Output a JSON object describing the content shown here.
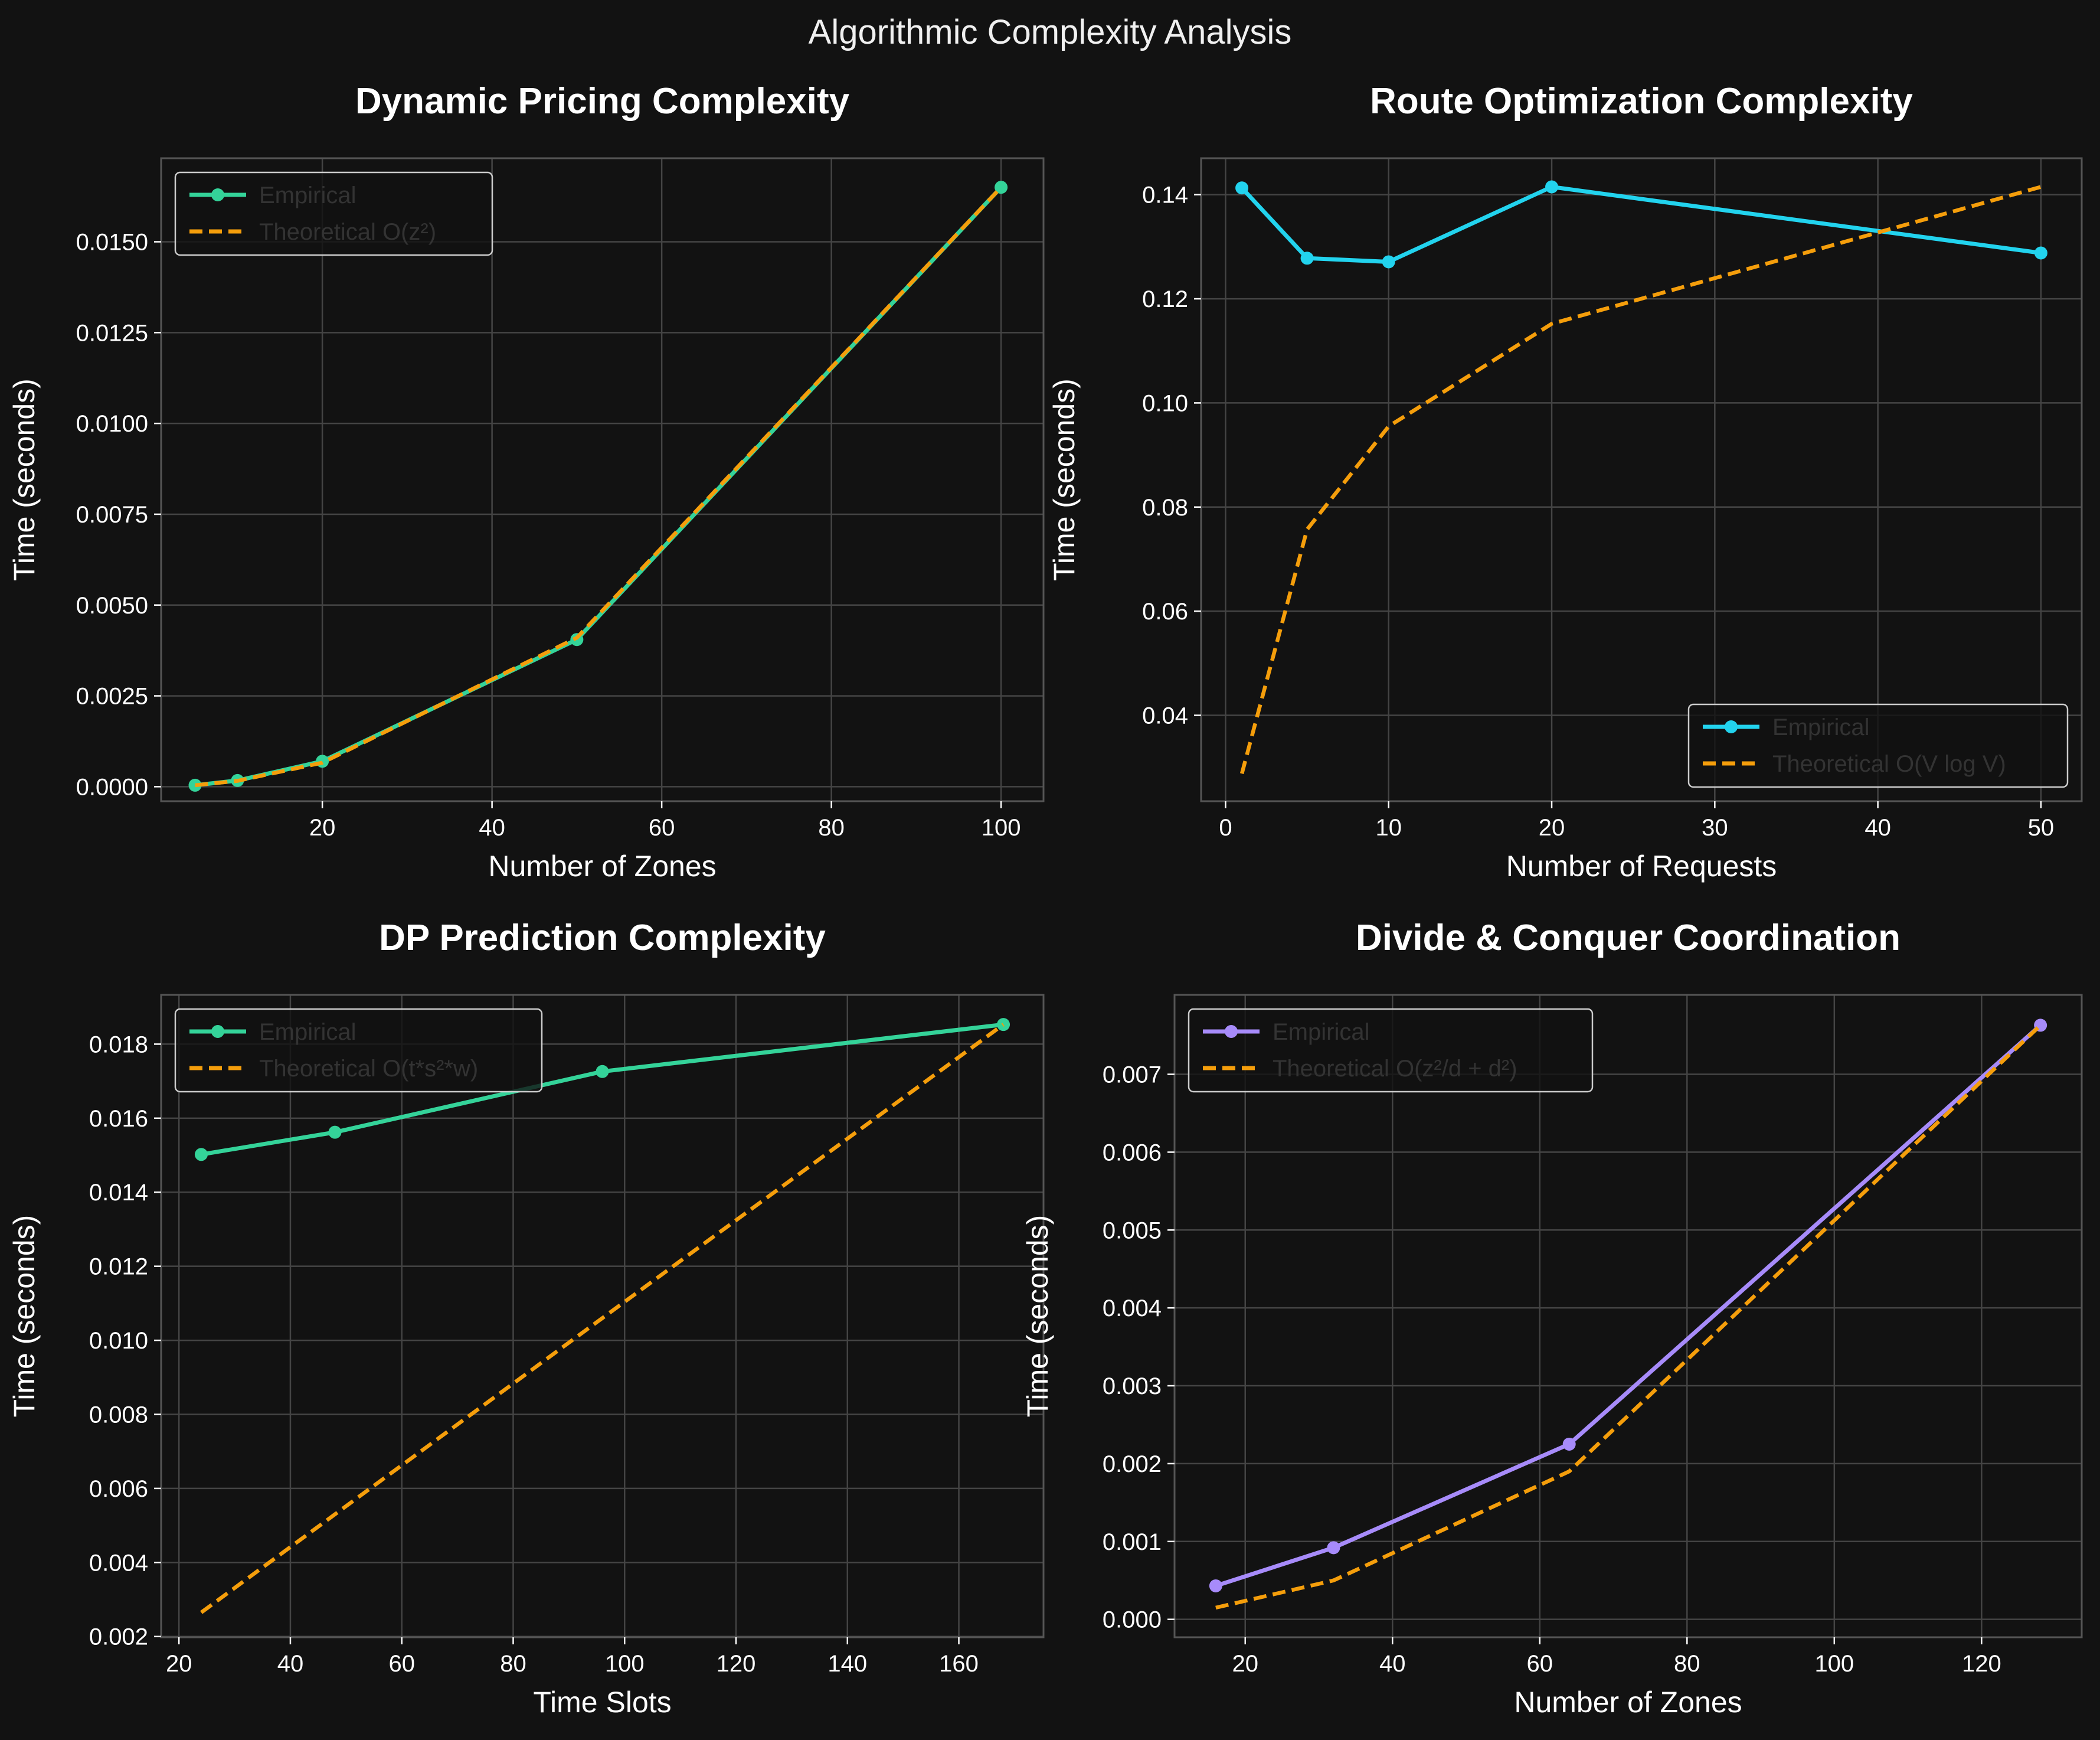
{
  "figure": {
    "title": "Algorithmic Complexity Analysis",
    "background": "#121212",
    "axes_facecolor": "#121212",
    "grid_color": "#444444",
    "spine_color": "#555555"
  },
  "chart_data": [
    {
      "type": "line",
      "title": "Dynamic Pricing Complexity",
      "xlabel": "Number of Zones",
      "ylabel": "Time (seconds)",
      "xlim": [
        1,
        105
      ],
      "ylim": [
        -0.0004,
        0.0173
      ],
      "xticks": [
        20,
        40,
        60,
        80,
        100
      ],
      "yticks": [
        0.0,
        0.0025,
        0.005,
        0.0075,
        0.01,
        0.0125,
        0.015
      ],
      "tick_decimals": 4,
      "grid": true,
      "legend_position": "top-left",
      "series": [
        {
          "name": "Empirical",
          "color": "#34d399",
          "style": "solid",
          "marker": true,
          "x": [
            5,
            10,
            20,
            50,
            100
          ],
          "y": [
            4e-05,
            0.00017,
            0.0007,
            0.00405,
            0.0165
          ]
        },
        {
          "name": "Theoretical O(z²)",
          "color": "#f59e0b",
          "style": "dashed",
          "marker": false,
          "x": [
            5,
            10,
            20,
            50,
            100
          ],
          "y": [
            4e-05,
            0.00016,
            0.00066,
            0.0041,
            0.0165
          ]
        }
      ]
    },
    {
      "type": "line",
      "title": "Route Optimization Complexity",
      "xlabel": "Number of Requests",
      "ylabel": "Time (seconds)",
      "xlim": [
        -1.5,
        52.5
      ],
      "ylim": [
        0.0235,
        0.147
      ],
      "xticks": [
        0,
        10,
        20,
        30,
        40,
        50
      ],
      "yticks": [
        0.04,
        0.06,
        0.08,
        0.1,
        0.12,
        0.14
      ],
      "tick_decimals": 2,
      "grid": true,
      "legend_position": "bottom-right",
      "series": [
        {
          "name": "Empirical",
          "color": "#22d3ee",
          "style": "solid",
          "marker": true,
          "x": [
            1,
            5,
            10,
            20,
            50
          ],
          "y": [
            0.1413,
            0.1278,
            0.1271,
            0.1415,
            0.1288
          ]
        },
        {
          "name": "Theoretical O(V log V)",
          "color": "#f59e0b",
          "style": "dashed",
          "marker": false,
          "x": [
            1,
            5,
            10,
            20,
            50
          ],
          "y": [
            0.0288,
            0.0757,
            0.0955,
            0.1152,
            0.1415
          ]
        }
      ]
    },
    {
      "type": "line",
      "title": "DP Prediction Complexity",
      "xlabel": "Time Slots",
      "ylabel": "Time (seconds)",
      "xlim": [
        16.8,
        175.2
      ],
      "ylim": [
        0.00198,
        0.01933
      ],
      "xticks": [
        20,
        40,
        60,
        80,
        100,
        120,
        140,
        160
      ],
      "yticks": [
        0.002,
        0.004,
        0.006,
        0.008,
        0.01,
        0.012,
        0.014,
        0.016,
        0.018
      ],
      "tick_decimals": 3,
      "grid": true,
      "legend_position": "top-left",
      "series": [
        {
          "name": "Empirical",
          "color": "#34d399",
          "style": "solid",
          "marker": true,
          "x": [
            24,
            48,
            96,
            168
          ],
          "y": [
            0.01502,
            0.01562,
            0.01726,
            0.01853
          ]
        },
        {
          "name": "Theoretical O(t*s²*w)",
          "color": "#f59e0b",
          "style": "dashed",
          "marker": false,
          "x": [
            24,
            48,
            96,
            168
          ],
          "y": [
            0.00265,
            0.0053,
            0.0106,
            0.01853
          ]
        }
      ]
    },
    {
      "type": "line",
      "title": "Divide & Conquer Coordination",
      "xlabel": "Number of Zones",
      "ylabel": "Time (seconds)",
      "xlim": [
        10.4,
        133.6
      ],
      "ylim": [
        -0.00023,
        0.00802
      ],
      "xticks": [
        20,
        40,
        60,
        80,
        100,
        120
      ],
      "yticks": [
        0.0,
        0.001,
        0.002,
        0.003,
        0.004,
        0.005,
        0.006,
        0.007
      ],
      "tick_decimals": 3,
      "grid": true,
      "legend_position": "top-left",
      "series": [
        {
          "name": "Empirical",
          "color": "#a78bfa",
          "style": "solid",
          "marker": true,
          "x": [
            16,
            32,
            64,
            128
          ],
          "y": [
            0.00043,
            0.00092,
            0.00225,
            0.00763
          ]
        },
        {
          "name": "Theoretical O(z²/d + d²)",
          "color": "#f59e0b",
          "style": "dashed",
          "marker": false,
          "x": [
            16,
            32,
            64,
            128
          ],
          "y": [
            0.00015,
            0.0005,
            0.0019,
            0.00763
          ]
        }
      ]
    }
  ]
}
